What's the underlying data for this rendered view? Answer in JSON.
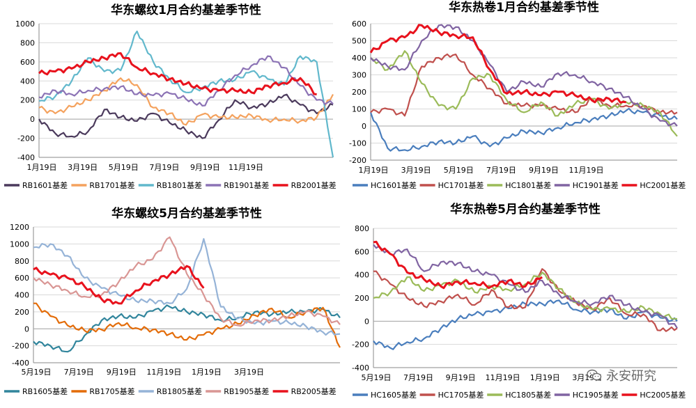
{
  "watermark": {
    "text": "永安研究",
    "icon": "wechat-icon"
  },
  "chart_data": [
    {
      "type": "line",
      "title": "华东螺纹1月合约基差季节性",
      "x_ticks": [
        "1月19日",
        "3月19日",
        "5月19日",
        "7月19日",
        "9月19日",
        "11月19日"
      ],
      "ylim": [
        -400,
        1000
      ],
      "y_ticks": [
        -400,
        -200,
        0,
        200,
        400,
        600,
        800,
        1000
      ],
      "grid": true,
      "legend": "bottom",
      "series": [
        {
          "name": "RB1601基差",
          "color": "#4b3a5c",
          "values": [
            0,
            -150,
            -180,
            -130,
            100,
            20,
            -20,
            60,
            -40,
            -120,
            -200,
            -10,
            200,
            120,
            160,
            250,
            150,
            60,
            150
          ]
        },
        {
          "name": "RB1701基差",
          "color": "#f4a25e",
          "values": [
            120,
            60,
            130,
            200,
            300,
            430,
            360,
            120,
            60,
            -60,
            50,
            20,
            20,
            40,
            -10,
            0,
            -20,
            20,
            260
          ]
        },
        {
          "name": "RB1801基差",
          "color": "#61b8cc",
          "values": [
            190,
            240,
            400,
            640,
            500,
            510,
            920,
            600,
            420,
            280,
            330,
            400,
            410,
            500,
            420,
            360,
            660,
            600,
            -400
          ]
        },
        {
          "name": "RB1901基差",
          "color": "#8c73b5",
          "values": [
            230,
            300,
            260,
            300,
            320,
            340,
            260,
            250,
            270,
            210,
            140,
            300,
            460,
            560,
            660,
            540,
            350,
            200,
            160
          ]
        },
        {
          "name": "RB2001基差",
          "color": "#e8121d",
          "values": [
            480,
            500,
            530,
            600,
            640,
            690,
            540,
            480,
            420,
            370,
            320,
            300,
            300,
            280,
            350,
            380,
            430,
            260,
            null
          ]
        }
      ]
    },
    {
      "type": "line",
      "title": "华东热卷1月合约基差季节性",
      "x_ticks": [
        "1月19日",
        "3月19日",
        "5月19日",
        "7月19日",
        "9月19日",
        "11月19日"
      ],
      "ylim": [
        -200,
        600
      ],
      "y_ticks": [
        -200,
        -100,
        0,
        100,
        200,
        300,
        400,
        500,
        600
      ],
      "grid": true,
      "legend": "bottom",
      "series": [
        {
          "name": "HC1601基差",
          "color": "#4a7ebd",
          "values": [
            80,
            -130,
            -140,
            -120,
            -90,
            -100,
            -60,
            -120,
            -70,
            -30,
            -40,
            -10,
            20,
            40,
            60,
            90,
            80,
            60,
            40
          ]
        },
        {
          "name": "HC1701基差",
          "color": "#c0504d",
          "values": [
            80,
            100,
            60,
            350,
            400,
            420,
            300,
            220,
            130,
            120,
            120,
            100,
            80,
            160,
            120,
            120,
            120,
            80,
            80
          ]
        },
        {
          "name": "HC1801基差",
          "color": "#9bbb59",
          "values": [
            400,
            330,
            440,
            250,
            120,
            100,
            280,
            300,
            150,
            80,
            140,
            60,
            130,
            160,
            100,
            140,
            120,
            80,
            -60
          ]
        },
        {
          "name": "HC1901基差",
          "color": "#8064a2",
          "values": [
            400,
            350,
            330,
            500,
            590,
            580,
            500,
            360,
            200,
            260,
            230,
            310,
            300,
            260,
            220,
            170,
            100,
            30,
            0
          ]
        },
        {
          "name": "HC2001基差",
          "color": "#e8121d",
          "values": [
            430,
            500,
            520,
            590,
            550,
            530,
            520,
            330,
            190,
            200,
            180,
            200,
            180,
            150,
            160,
            140,
            null,
            null,
            null
          ]
        }
      ]
    },
    {
      "type": "line",
      "title": "华东螺纹5月合约基差季节性",
      "x_ticks": [
        "5月19日",
        "7月19日",
        "9月19日",
        "11月19日",
        "1月19日",
        "3月19日"
      ],
      "ylim": [
        -400,
        1200
      ],
      "y_ticks": [
        -400,
        -200,
        0,
        200,
        400,
        600,
        800,
        1000,
        1200
      ],
      "grid": true,
      "legend": "bottom",
      "series": [
        {
          "name": "RB1605基差",
          "color": "#31859c",
          "values": [
            -150,
            -200,
            -270,
            -80,
            100,
            150,
            130,
            210,
            260,
            200,
            170,
            100,
            130,
            200,
            170,
            200,
            200,
            230,
            130
          ]
        },
        {
          "name": "RB1705基差",
          "color": "#e36c09",
          "values": [
            300,
            150,
            40,
            -20,
            -10,
            70,
            10,
            -10,
            -60,
            -130,
            -70,
            0,
            60,
            160,
            240,
            130,
            200,
            250,
            -220
          ]
        },
        {
          "name": "RB1805基差",
          "color": "#95b3d7",
          "values": [
            960,
            1000,
            860,
            600,
            480,
            400,
            330,
            330,
            300,
            470,
            1060,
            260,
            120,
            60,
            90,
            70,
            30,
            -40,
            -60
          ]
        },
        {
          "name": "RB1905基差",
          "color": "#d99694",
          "values": [
            600,
            520,
            450,
            380,
            400,
            550,
            740,
            820,
            1080,
            650,
            400,
            120,
            40,
            100,
            100,
            150,
            200,
            150,
            50
          ]
        },
        {
          "name": "RB2005基差",
          "color": "#e8121d",
          "values": [
            700,
            640,
            600,
            500,
            350,
            300,
            450,
            560,
            640,
            740,
            480,
            null,
            null,
            null,
            null,
            null,
            null,
            null,
            null
          ]
        }
      ]
    },
    {
      "type": "line",
      "title": "华东热卷5月合约基差季节性",
      "x_ticks": [
        "5月19日",
        "7月19日",
        "9月19日",
        "11月19日",
        "1月19日",
        "3月19日"
      ],
      "ylim": [
        -400,
        800
      ],
      "y_ticks": [
        -400,
        -200,
        0,
        200,
        400,
        600,
        800
      ],
      "grid": true,
      "legend": "bottom",
      "series": [
        {
          "name": "HC1605基差",
          "color": "#4a7ebd",
          "values": [
            -170,
            -230,
            -180,
            -150,
            -60,
            20,
            60,
            80,
            110,
            150,
            150,
            180,
            100,
            80,
            100,
            20,
            80,
            30,
            0
          ]
        },
        {
          "name": "HC1705基差",
          "color": "#c0504d",
          "values": [
            430,
            320,
            200,
            130,
            170,
            230,
            140,
            270,
            120,
            120,
            450,
            260,
            160,
            100,
            200,
            60,
            60,
            -80,
            -60
          ]
        },
        {
          "name": "HC1805基差",
          "color": "#9bbb59",
          "values": [
            200,
            250,
            380,
            260,
            310,
            350,
            250,
            300,
            270,
            320,
            420,
            280,
            160,
            100,
            110,
            80,
            120,
            60,
            20
          ]
        },
        {
          "name": "HC1905基差",
          "color": "#8064a2",
          "values": [
            660,
            580,
            620,
            430,
            510,
            500,
            430,
            400,
            320,
            250,
            350,
            230,
            170,
            150,
            220,
            140,
            80,
            50,
            -60
          ]
        },
        {
          "name": "HC2005基差",
          "color": "#e8121d",
          "values": [
            680,
            580,
            420,
            360,
            300,
            340,
            330,
            300,
            350,
            300,
            380,
            null,
            null,
            null,
            null,
            null,
            null,
            null,
            null
          ]
        }
      ]
    }
  ]
}
